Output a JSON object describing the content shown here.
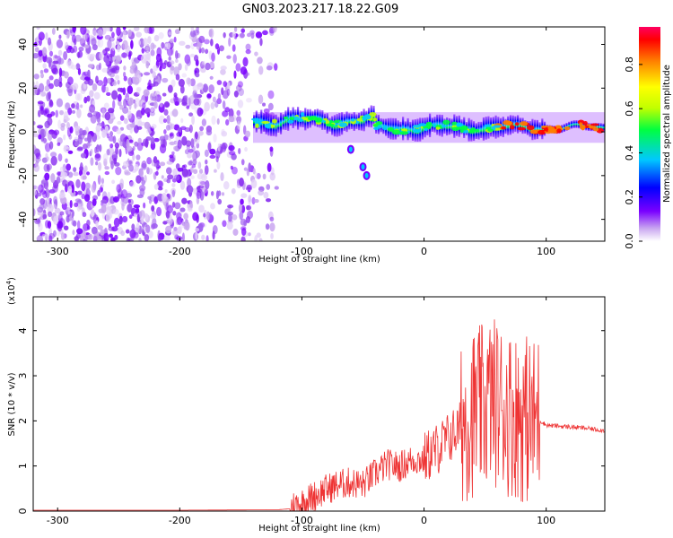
{
  "title": "GN03.2023.217.18.22.G09",
  "chart_data": [
    {
      "type": "heatmap",
      "xlabel": "Height of straight line (km)",
      "ylabel": "Frequency (Hz)",
      "xlim": [
        -320,
        148
      ],
      "ylim": [
        -50,
        48
      ],
      "xticks": [
        -300,
        -200,
        -100,
        0,
        100
      ],
      "yticks": [
        -40,
        -20,
        0,
        20,
        40
      ],
      "colorbar": {
        "label": "Normalized spectral amplitude",
        "range": [
          0,
          0.97
        ],
        "ticks": [
          0.0,
          0.2,
          0.4,
          0.6,
          0.8
        ],
        "colors": [
          "#ffffff",
          "#c9a6f0",
          "#7a00ff",
          "#0000ff",
          "#00c8ff",
          "#00ff40",
          "#c0ff00",
          "#ffff00",
          "#ff8000",
          "#ff0000",
          "#ff0060"
        ]
      },
      "features": {
        "noise_region_x": [
          -320,
          -120
        ],
        "signal_band_x": [
          -140,
          148
        ],
        "signal_center_hz": 2,
        "side_track_points": [
          {
            "x": -60,
            "y": -8
          },
          {
            "x": -50,
            "y": -16
          },
          {
            "x": -47,
            "y": -20
          }
        ]
      }
    },
    {
      "type": "line",
      "xlabel": "Height of straight line (km)",
      "ylabel": "SNR (10 * v/v)",
      "multiplier": "(x10",
      "multiplier_exp": "4",
      "multiplier_close": ")",
      "xlim": [
        -320,
        148
      ],
      "ylim": [
        0,
        4.75
      ],
      "xticks": [
        -300,
        -200,
        -100,
        0,
        100
      ],
      "yticks": [
        0,
        1,
        2,
        3,
        4
      ],
      "color": "#ee3333",
      "series": [
        {
          "x": [
            -320,
            -200,
            -120,
            -110,
            -100,
            -90,
            -80,
            -70,
            -60,
            -50,
            -40,
            -30,
            -20,
            -10,
            0,
            10,
            20,
            30,
            40,
            50,
            55,
            60,
            70,
            80,
            90,
            95,
            100,
            110,
            120,
            130,
            148
          ],
          "y": [
            0.02,
            0.02,
            0.03,
            0.05,
            0.15,
            0.3,
            0.45,
            0.55,
            0.6,
            0.55,
            0.8,
            1.0,
            0.95,
            1.1,
            1.1,
            1.3,
            1.55,
            1.8,
            2.0,
            2.1,
            2.3,
            2.2,
            2.0,
            1.9,
            1.8,
            2.0,
            1.9,
            1.88,
            1.86,
            1.84,
            1.78
          ]
        }
      ]
    }
  ]
}
